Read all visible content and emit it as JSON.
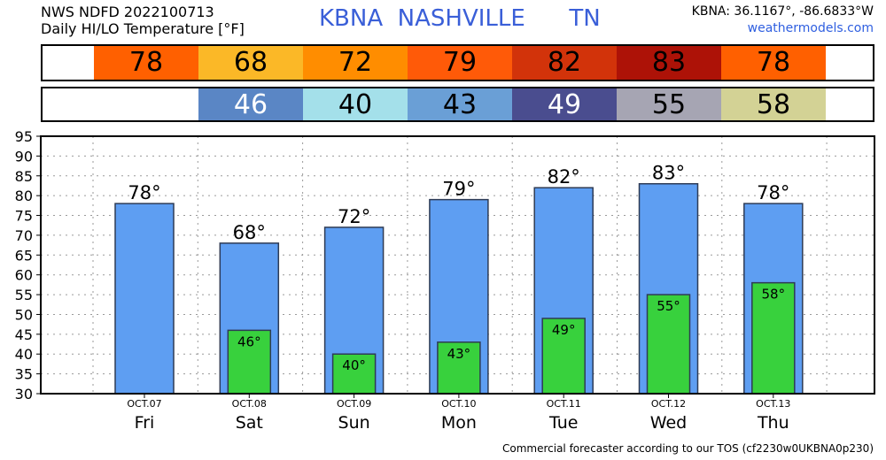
{
  "header": {
    "line1": "NWS NDFD 2022100713",
    "line2": "Daily HI/LO Temperature [°F]",
    "station": "KBNA  NASHVILLE      TN",
    "coords": "KBNA: 36.1167°, -86.6833°W",
    "site": "weathermodels.com"
  },
  "strip_hi": [
    {
      "text": "78",
      "color": "#ff6000",
      "value": 78
    },
    {
      "text": "68",
      "color": "#fbb827",
      "value": 68
    },
    {
      "text": "72",
      "color": "#ff8d00",
      "value": 72
    },
    {
      "text": "79",
      "color": "#ff5a08",
      "value": 79
    },
    {
      "text": "82",
      "color": "#d2330a",
      "value": 82
    },
    {
      "text": "83",
      "color": "#ad1207",
      "value": 83
    },
    {
      "text": "78",
      "color": "#ff6000",
      "value": 78
    }
  ],
  "strip_lo": [
    {
      "text": "46",
      "color": "#5a86c5",
      "value": 46,
      "textColor": "#ffffff"
    },
    {
      "text": "40",
      "color": "#a4e0ea",
      "value": 40,
      "textColor": "#000000"
    },
    {
      "text": "43",
      "color": "#6a9fd6",
      "value": 43,
      "textColor": "#000000"
    },
    {
      "text": "49",
      "color": "#4a4d8f",
      "value": 49,
      "textColor": "#ffffff"
    },
    {
      "text": "55",
      "color": "#a6a5b3",
      "value": 55,
      "textColor": "#000000"
    },
    {
      "text": "58",
      "color": "#d3d295",
      "value": 58,
      "textColor": "#000000"
    }
  ],
  "chart_data": {
    "type": "bar",
    "categories": [
      "Fri",
      "Sat",
      "Sun",
      "Mon",
      "Tue",
      "Wed",
      "Thu"
    ],
    "dates": [
      "OCT.07",
      "OCT.08",
      "OCT.09",
      "OCT.10",
      "OCT.11",
      "OCT.12",
      "OCT.13"
    ],
    "series": [
      {
        "values": [
          78,
          68,
          72,
          79,
          82,
          83,
          78
        ],
        "labels": [
          "78°",
          "68°",
          "72°",
          "79°",
          "82°",
          "83°",
          "78°"
        ],
        "color": "#5e9ef2"
      },
      {
        "values": [
          null,
          46,
          40,
          43,
          49,
          55,
          58
        ],
        "labels": [
          "",
          "46°",
          "40°",
          "43°",
          "49°",
          "55°",
          "58°"
        ],
        "color": "#38d13d"
      }
    ],
    "ylim": [
      30,
      95
    ],
    "yticks": [
      30,
      35,
      40,
      45,
      50,
      55,
      60,
      65,
      70,
      75,
      80,
      85,
      90,
      95
    ],
    "grid": true,
    "title": "",
    "xlabel": "",
    "ylabel": ""
  },
  "footer": "Commercial forecaster according to our TOS (cf2230w0UKBNA0p230)"
}
